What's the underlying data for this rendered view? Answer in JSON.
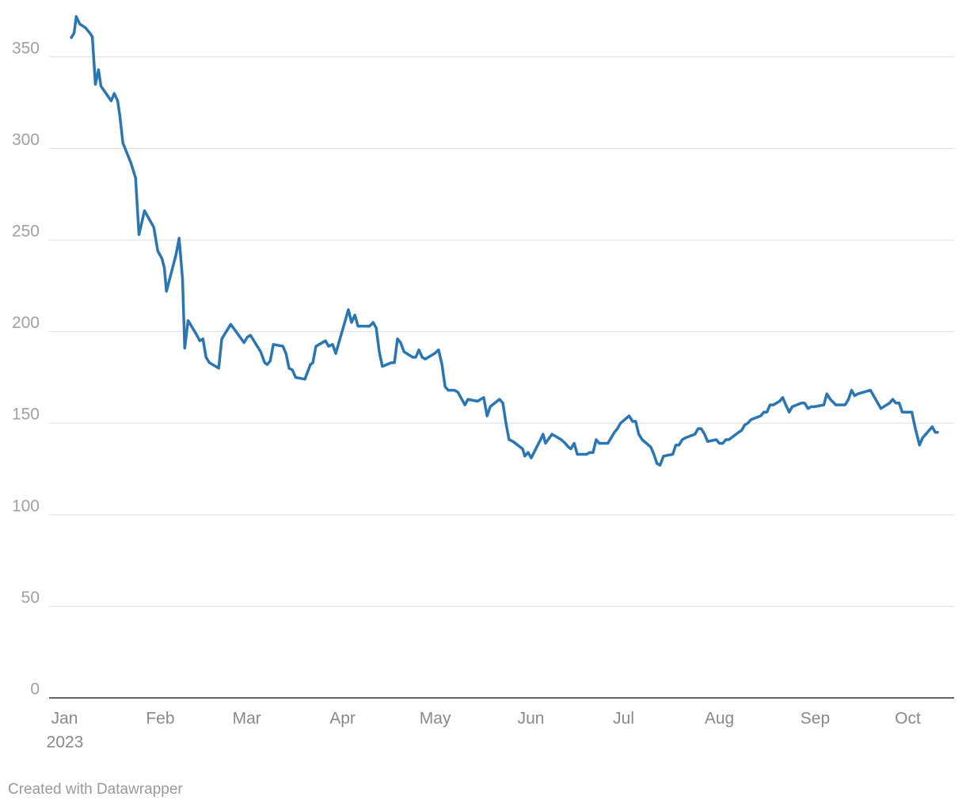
{
  "chart_data": {
    "type": "line",
    "x": [
      2.0,
      3.1,
      3.8,
      4.9,
      6.7,
      8.2,
      9.0,
      10.0,
      11.0,
      11.8,
      15.1,
      16.1,
      17.2,
      17.9,
      18.9,
      21.5,
      23.0,
      24.1,
      25.9,
      28.9,
      30.2,
      31.5,
      32.3,
      33.0,
      36.1,
      37.1,
      38.2,
      38.9,
      40.0,
      42.5,
      43.8,
      44.8,
      45.8,
      46.9,
      49.9,
      50.9,
      53.8,
      56.8,
      58.1,
      59.2,
      60.2,
      63.5,
      64.8,
      65.6,
      66.6,
      67.6,
      70.7,
      71.7,
      72.7,
      73.8,
      74.8,
      77.8,
      79.6,
      80.4,
      81.4,
      84.5,
      85.5,
      86.8,
      87.8,
      91.9,
      92.9,
      94.0,
      95.0,
      98.8,
      99.9,
      100.9,
      101.9,
      102.9,
      105.8,
      106.8,
      107.8,
      108.8,
      109.9,
      112.7,
      113.7,
      114.7,
      115.8,
      116.8,
      119.8,
      121.1,
      122.2,
      123.2,
      124.2,
      126.2,
      127.3,
      128.3,
      129.6,
      130.6,
      133.7,
      134.7,
      135.7,
      136.8,
      137.8,
      140.8,
      141.9,
      142.9,
      143.9,
      145.2,
      148.3,
      149.0,
      150.1,
      151.1,
      154.4,
      154.9,
      155.7,
      157.8,
      160.8,
      162.1,
      163.1,
      163.9,
      165.0,
      166.0,
      169.0,
      170.0,
      171.1,
      172.1,
      173.1,
      175.9,
      178.0,
      179.0,
      180.0,
      182.8,
      183.9,
      184.9,
      185.9,
      187.0,
      189.8,
      190.8,
      191.8,
      192.8,
      193.9,
      196.9,
      197.9,
      198.9,
      200.0,
      201.0,
      204.1,
      205.1,
      206.1,
      207.2,
      208.2,
      211.0,
      212.0,
      213.1,
      214.1,
      215.1,
      218.2,
      219.2,
      220.2,
      221.2,
      222.3,
      225.4,
      226.4,
      227.4,
      228.4,
      229.5,
      231.5,
      232.5,
      233.5,
      234.6,
      235.6,
      238.6,
      239.6,
      240.7,
      241.7,
      242.8,
      245.8,
      246.8,
      247.9,
      249.7,
      252.7,
      253.8,
      254.8,
      255.8,
      256.8,
      260.9,
      263.3,
      264.3,
      267.1,
      268.1,
      269.1,
      270.2,
      271.2,
      274.3,
      275.3,
      276.8,
      277.8,
      280.9,
      281.9,
      283.0
    ],
    "series": [
      {
        "color": "#2a75b3",
        "values": [
          360,
          363,
          372,
          368,
          366,
          363,
          361,
          335,
          343,
          334,
          326,
          330,
          326,
          318,
          303,
          292,
          284,
          253,
          266,
          257,
          244,
          240,
          235,
          222,
          242,
          251,
          229,
          191,
          206,
          199,
          195,
          196,
          186,
          183,
          180,
          196,
          204,
          197,
          194,
          197,
          198,
          189,
          183,
          182,
          184,
          193,
          192,
          188,
          180,
          179,
          175,
          174,
          182,
          183,
          192,
          195,
          192,
          193,
          188,
          212,
          205,
          209,
          203,
          203,
          205,
          202,
          189,
          181,
          183,
          183,
          196,
          194,
          189,
          186,
          186,
          190,
          186,
          185,
          188,
          190,
          182,
          170,
          168,
          168,
          167,
          164,
          160,
          163,
          162,
          163,
          164,
          154,
          159,
          163,
          161,
          150,
          141,
          140,
          136,
          132,
          134,
          131,
          142,
          144,
          139,
          144,
          141,
          139,
          137,
          136,
          139,
          133,
          133,
          134,
          134,
          141,
          139,
          139,
          145,
          147,
          150,
          154,
          151,
          151,
          144,
          141,
          137,
          133,
          128,
          127,
          132,
          133,
          138,
          138,
          141,
          142,
          144,
          147,
          147,
          144,
          140,
          141,
          139,
          139,
          141,
          141,
          145,
          146,
          149,
          150,
          152,
          154,
          156,
          156,
          160,
          160,
          162,
          164,
          160,
          156,
          159,
          161,
          161,
          158,
          159,
          159,
          160,
          166,
          163,
          160,
          160,
          163,
          168,
          165,
          166,
          168,
          161,
          158,
          161,
          163,
          161,
          161,
          156,
          156,
          148,
          138,
          142,
          148,
          145,
          145
        ]
      }
    ],
    "xlim": [
      -5,
      288
    ],
    "xticks": [
      {
        "value": 0,
        "label": "Jan"
      },
      {
        "value": 31,
        "label": "Feb"
      },
      {
        "value": 59,
        "label": "Mar"
      },
      {
        "value": 90,
        "label": "Apr"
      },
      {
        "value": 120,
        "label": "May"
      },
      {
        "value": 151,
        "label": "Jun"
      },
      {
        "value": 181,
        "label": "Jul"
      },
      {
        "value": 212,
        "label": "Aug"
      },
      {
        "value": 243,
        "label": "Sep"
      },
      {
        "value": 273,
        "label": "Oct"
      }
    ],
    "x_year_label": "2023",
    "ylim": [
      0,
      375
    ],
    "yticks": [
      0,
      50,
      100,
      150,
      200,
      250,
      300,
      350
    ],
    "grid": true,
    "credit": "Created with Datawrapper"
  }
}
